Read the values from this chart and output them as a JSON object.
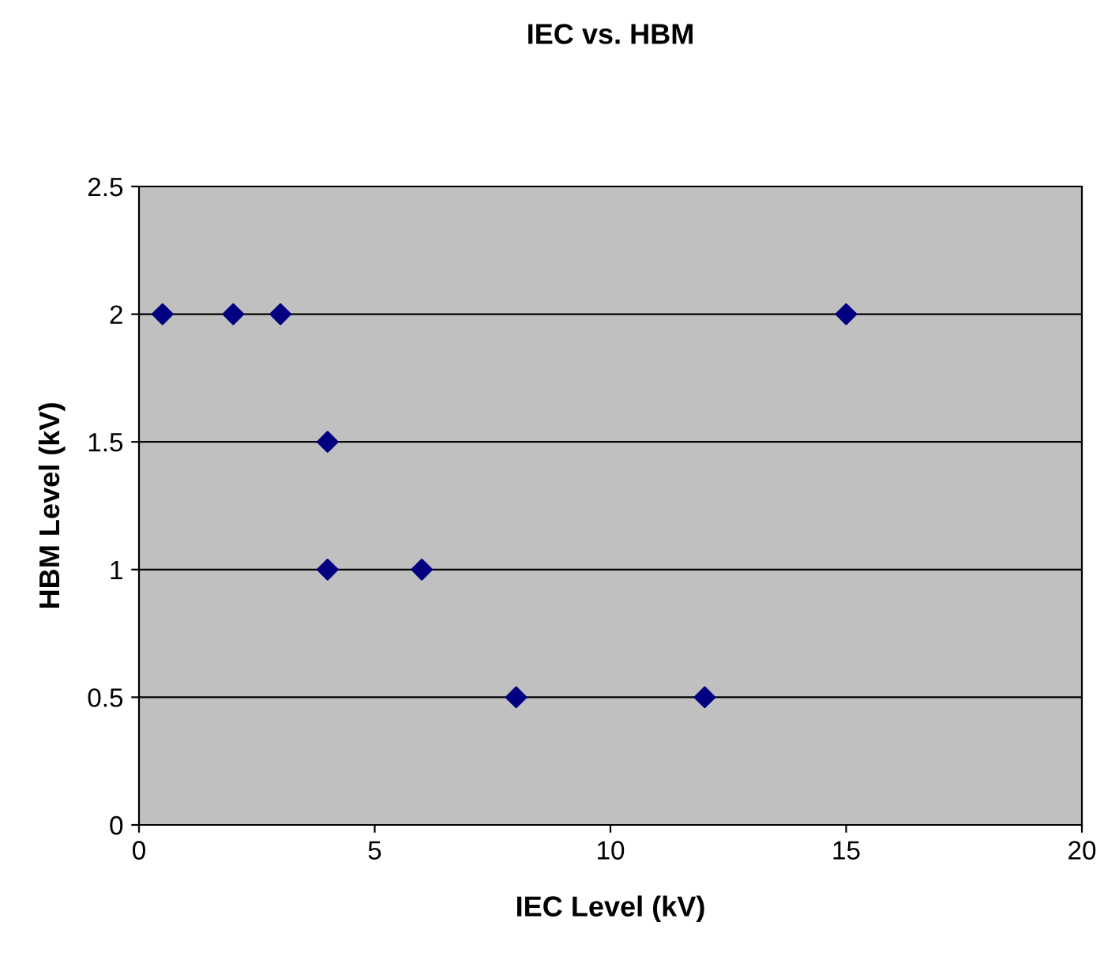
{
  "chart_data": {
    "type": "scatter",
    "title": "IEC vs. HBM",
    "xlabel": "IEC Level (kV)",
    "ylabel": "HBM Level (kV)",
    "x": [
      0.5,
      2,
      3,
      4,
      4,
      6,
      8,
      12,
      15
    ],
    "series": [
      {
        "color": "#000080",
        "values": [
          2,
          2,
          2,
          1.5,
          1,
          1,
          0.5,
          0.5,
          2
        ]
      }
    ],
    "xlim": [
      0,
      20
    ],
    "ylim": [
      0,
      2.5
    ],
    "xticks": [
      0,
      5,
      10,
      15,
      20
    ],
    "yticks": [
      0,
      0.5,
      1,
      1.5,
      2,
      2.5
    ],
    "grid": "y",
    "marker": "diamond",
    "legend": false
  }
}
